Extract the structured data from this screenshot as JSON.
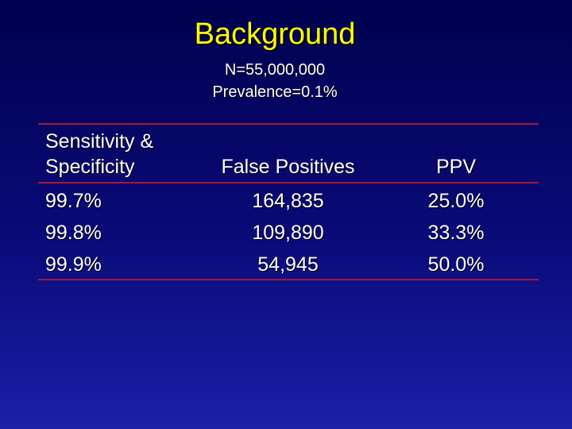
{
  "slide": {
    "title": "Background",
    "subtitle_line1": "N=55,000,000",
    "subtitle_line2": "Prevalence=0.1%"
  },
  "table": {
    "headers": {
      "col1_line1": "Sensitivity &",
      "col1_line2": "Specificity",
      "col2": "False Positives",
      "col3": "PPV"
    },
    "rows": [
      {
        "sens_spec": "99.7%",
        "false_positives": "164,835",
        "ppv": "25.0%"
      },
      {
        "sens_spec": "99.8%",
        "false_positives": "109,890",
        "ppv": "33.3%"
      },
      {
        "sens_spec": "99.9%",
        "false_positives": "54,945",
        "ppv": "50.0%"
      }
    ]
  },
  "colors": {
    "title": "#ffff00",
    "text": "#ffffff",
    "rule": "#a01a3a",
    "background": "#0a0a78"
  }
}
